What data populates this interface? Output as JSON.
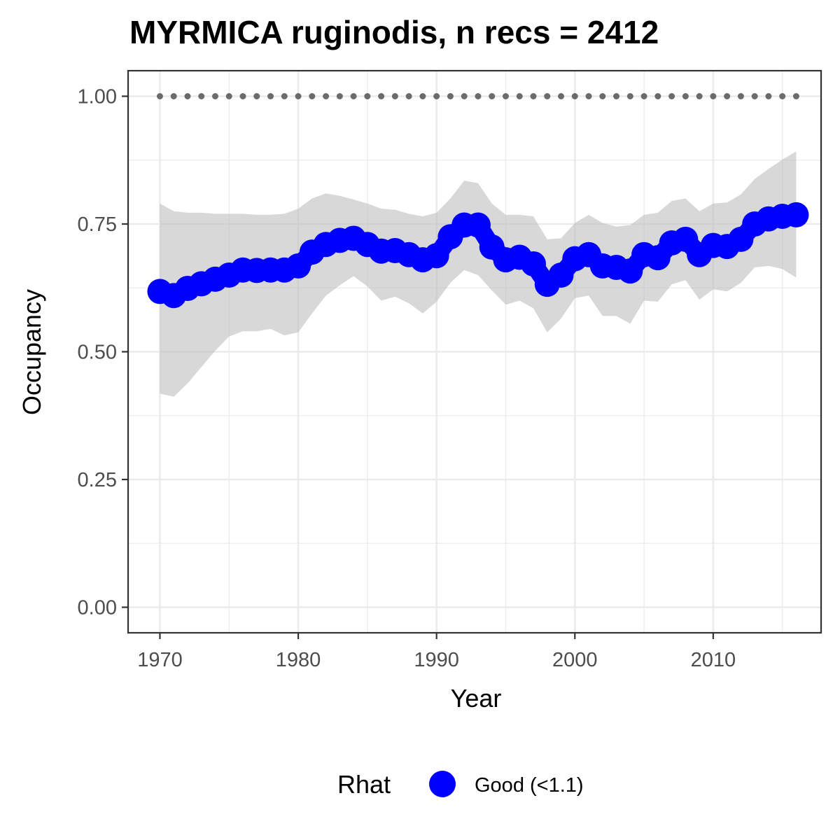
{
  "chart_data": {
    "type": "line",
    "title": "MYRMICA ruginodis, n recs = 2412",
    "xlabel": "Year",
    "ylabel": "Occupancy",
    "xlim": [
      1967.7,
      2017.8
    ],
    "ylim": [
      -0.05,
      1.05
    ],
    "x_ticks": [
      1970,
      1980,
      1990,
      2000,
      2010
    ],
    "x_tick_labels": [
      "1970",
      "1980",
      "1990",
      "2000",
      "2010"
    ],
    "y_ticks": [
      0,
      0.25,
      0.5,
      0.75,
      1.0
    ],
    "y_tick_labels": [
      "0.00",
      "0.25",
      "0.50",
      "0.75",
      "1.00"
    ],
    "grid": true,
    "x": [
      1970,
      1971,
      1972,
      1973,
      1974,
      1975,
      1976,
      1977,
      1978,
      1979,
      1980,
      1981,
      1982,
      1983,
      1984,
      1985,
      1986,
      1987,
      1988,
      1989,
      1990,
      1991,
      1992,
      1993,
      1994,
      1995,
      1996,
      1997,
      1998,
      1999,
      2000,
      2001,
      2002,
      2003,
      2004,
      2005,
      2006,
      2007,
      2008,
      2009,
      2010,
      2011,
      2012,
      2013,
      2014,
      2015,
      2016
    ],
    "series": [
      {
        "name": "Good (<1.1)",
        "role": "occupancy mean",
        "values": [
          0.618,
          0.61,
          0.624,
          0.633,
          0.642,
          0.65,
          0.66,
          0.659,
          0.66,
          0.66,
          0.668,
          0.695,
          0.71,
          0.718,
          0.722,
          0.71,
          0.697,
          0.698,
          0.69,
          0.68,
          0.688,
          0.725,
          0.748,
          0.748,
          0.705,
          0.68,
          0.685,
          0.672,
          0.632,
          0.65,
          0.682,
          0.69,
          0.668,
          0.665,
          0.658,
          0.69,
          0.684,
          0.713,
          0.72,
          0.69,
          0.708,
          0.706,
          0.72,
          0.75,
          0.76,
          0.765,
          0.768
        ]
      },
      {
        "role": "credible interval lower",
        "values": [
          0.418,
          0.412,
          0.438,
          0.47,
          0.502,
          0.53,
          0.54,
          0.54,
          0.545,
          0.532,
          0.538,
          0.575,
          0.61,
          0.63,
          0.648,
          0.628,
          0.6,
          0.608,
          0.595,
          0.575,
          0.598,
          0.635,
          0.66,
          0.65,
          0.62,
          0.592,
          0.6,
          0.585,
          0.538,
          0.565,
          0.605,
          0.61,
          0.57,
          0.57,
          0.555,
          0.6,
          0.598,
          0.632,
          0.64,
          0.602,
          0.622,
          0.618,
          0.635,
          0.665,
          0.668,
          0.662,
          0.645
        ]
      },
      {
        "role": "credible interval upper",
        "values": [
          0.79,
          0.775,
          0.772,
          0.772,
          0.77,
          0.77,
          0.77,
          0.768,
          0.768,
          0.77,
          0.78,
          0.8,
          0.81,
          0.805,
          0.798,
          0.79,
          0.78,
          0.778,
          0.77,
          0.765,
          0.772,
          0.8,
          0.835,
          0.83,
          0.79,
          0.768,
          0.768,
          0.765,
          0.72,
          0.722,
          0.752,
          0.768,
          0.752,
          0.745,
          0.748,
          0.768,
          0.772,
          0.795,
          0.8,
          0.775,
          0.79,
          0.792,
          0.808,
          0.838,
          0.858,
          0.876,
          0.892
        ]
      },
      {
        "role": "reference dotted line",
        "values": [
          1,
          1,
          1,
          1,
          1,
          1,
          1,
          1,
          1,
          1,
          1,
          1,
          1,
          1,
          1,
          1,
          1,
          1,
          1,
          1,
          1,
          1,
          1,
          1,
          1,
          1,
          1,
          1,
          1,
          1,
          1,
          1,
          1,
          1,
          1,
          1,
          1,
          1,
          1,
          1,
          1,
          1,
          1,
          1,
          1,
          1,
          1
        ]
      }
    ],
    "colors": {
      "points": "#0000ff",
      "ribbon": "#bebebe",
      "reference": "#6b6b6b",
      "grid": "#ebebeb",
      "panel_border": "#333333"
    },
    "legend": {
      "title": "Rhat",
      "entries": [
        "Good (<1.1)"
      ],
      "placement": "bottom"
    }
  }
}
